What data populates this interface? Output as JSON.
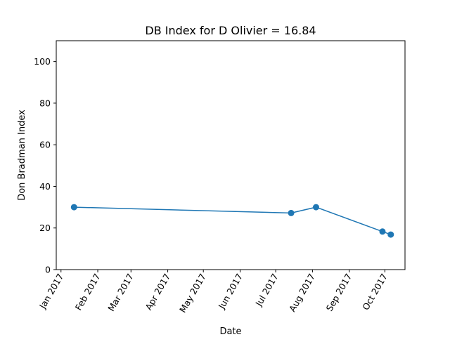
{
  "chart_data": {
    "type": "line",
    "title": "DB Index for D Olivier = 16.84",
    "xlabel": "Date",
    "ylabel": "Don Bradman Index",
    "ylim": [
      0,
      110
    ],
    "xlim": [
      "2016-12-28",
      "2017-10-18"
    ],
    "yticks": [
      0,
      20,
      40,
      60,
      80,
      100
    ],
    "xticks": [
      {
        "date": "2017-01-01",
        "label": "Jan 2017"
      },
      {
        "date": "2017-02-01",
        "label": "Feb 2017"
      },
      {
        "date": "2017-03-01",
        "label": "Mar 2017"
      },
      {
        "date": "2017-04-01",
        "label": "Apr 2017"
      },
      {
        "date": "2017-05-01",
        "label": "May 2017"
      },
      {
        "date": "2017-06-01",
        "label": "Jun 2017"
      },
      {
        "date": "2017-07-01",
        "label": "Jul 2017"
      },
      {
        "date": "2017-08-01",
        "label": "Aug 2017"
      },
      {
        "date": "2017-09-01",
        "label": "Sep 2017"
      },
      {
        "date": "2017-10-01",
        "label": "Oct 2017"
      }
    ],
    "series": [
      {
        "color": "#1f77b4",
        "points": [
          {
            "x": "2017-01-12",
            "y": 30.0
          },
          {
            "x": "2017-07-14",
            "y": 27.2
          },
          {
            "x": "2017-08-04",
            "y": 30.0
          },
          {
            "x": "2017-09-29",
            "y": 18.3
          },
          {
            "x": "2017-10-06",
            "y": 16.84
          }
        ]
      }
    ],
    "grid": false,
    "legend": "none"
  }
}
